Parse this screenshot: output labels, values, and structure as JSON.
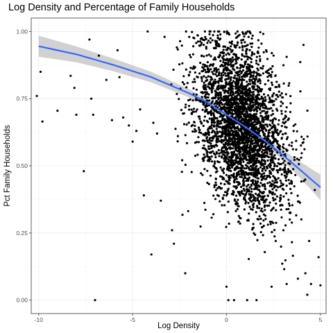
{
  "chart_data": {
    "type": "scatter",
    "title": "Log Density and Percentage of Family Households",
    "xlabel": "Log Density",
    "ylabel": "Pct Family Households",
    "xlim": [
      -10.4,
      5.3
    ],
    "ylim": [
      -0.05,
      1.05
    ],
    "x_ticks": [
      -10,
      -5,
      0,
      5
    ],
    "x_tick_labels": [
      "-10",
      "-5",
      "0",
      "5"
    ],
    "y_ticks": [
      0,
      0.25,
      0.5,
      0.75,
      1.0
    ],
    "y_tick_labels": [
      "0.00",
      "0.25",
      "0.50",
      "0.75",
      "1.00"
    ],
    "grid": true,
    "point_color": "#000000",
    "smooth_color": "#3366FF",
    "ribbon_color": "#999999",
    "smooth": {
      "method": "loess",
      "x": [
        -10,
        -8,
        -6,
        -4,
        -2,
        -1,
        0,
        1,
        2,
        3,
        4,
        5
      ],
      "y": [
        0.945,
        0.915,
        0.875,
        0.83,
        0.77,
        0.735,
        0.69,
        0.645,
        0.595,
        0.54,
        0.48,
        0.42
      ],
      "se": [
        0.02,
        0.015,
        0.012,
        0.01,
        0.008,
        0.006,
        0.005,
        0.005,
        0.006,
        0.01,
        0.016,
        0.024
      ]
    },
    "sparse_points": [
      [
        -10.1,
        0.76
      ],
      [
        -9.9,
        0.85
      ],
      [
        -9.8,
        0.665
      ],
      [
        -9.0,
        0.705
      ],
      [
        -8.3,
        0.835
      ],
      [
        -8.1,
        0.79
      ],
      [
        -8.0,
        0.69
      ],
      [
        -7.6,
        0.48
      ],
      [
        -7.3,
        0.97
      ],
      [
        -7.2,
        0.75
      ],
      [
        -7.1,
        0.69
      ],
      [
        -7.0,
        0.0
      ],
      [
        -6.8,
        0.91
      ],
      [
        -6.4,
        0.82
      ],
      [
        -6.1,
        0.67
      ],
      [
        -5.8,
        0.93
      ],
      [
        -5.7,
        0.83
      ],
      [
        -5.5,
        0.68
      ],
      [
        -5.2,
        0.65
      ],
      [
        -5.0,
        0.59
      ],
      [
        -4.8,
        0.63
      ],
      [
        -4.6,
        0.71
      ],
      [
        -4.4,
        0.39
      ],
      [
        -4.0,
        0.17
      ],
      [
        -3.9,
        0.66
      ],
      [
        -3.7,
        0.62
      ],
      [
        -3.5,
        0.37
      ],
      [
        -3.3,
        0.98
      ],
      [
        -2.9,
        0.26
      ],
      [
        -2.8,
        0.21
      ],
      [
        -2.2,
        0.1
      ],
      [
        -4.2,
        1.0
      ],
      [
        0.0,
        0.05
      ],
      [
        0.1,
        0.0
      ],
      [
        0.4,
        0.0
      ],
      [
        1.1,
        0.0
      ],
      [
        1.6,
        0.0
      ],
      [
        2.4,
        0.05
      ],
      [
        3.2,
        0.06
      ],
      [
        4.2,
        0.1
      ],
      [
        4.5,
        0.06
      ],
      [
        5.0,
        0.055
      ],
      [
        3.8,
        0.08
      ],
      [
        4.3,
        0.02
      ],
      [
        4.4,
        0.22
      ],
      [
        4.9,
        0.16
      ],
      [
        4.7,
        0.41
      ],
      [
        4.1,
        0.95
      ]
    ],
    "dense_cloud": {
      "n": 3400,
      "center_x": 0.8,
      "sd_x": 1.25,
      "y_sd": 0.15,
      "x_range": [
        -3.0,
        4.4
      ],
      "seed": 17
    }
  }
}
